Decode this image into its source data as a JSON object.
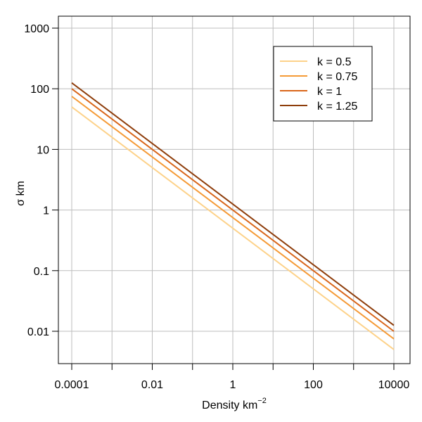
{
  "chart_data": {
    "type": "line",
    "title": "",
    "xlabel": "Density   km",
    "xlabel_exponent": "−2",
    "ylabel": "σ  km",
    "x_scale": "log",
    "y_scale": "log",
    "xlim": [
      0.0001,
      10000
    ],
    "ylim": [
      0.005,
      1200
    ],
    "grid": true,
    "legend_position": "top-right",
    "x_ticks": [
      0.0001,
      0.001,
      0.01,
      0.1,
      1,
      10,
      100,
      1000,
      10000
    ],
    "x_tick_labels": [
      "0.0001",
      "",
      "0.01",
      "",
      "1",
      "",
      "100",
      "",
      "10000"
    ],
    "y_ticks": [
      0.01,
      0.1,
      1,
      10,
      100,
      1000
    ],
    "y_tick_labels": [
      "0.01",
      "0.1",
      "1",
      "10",
      "100",
      "1000"
    ],
    "series": [
      {
        "name": "k =  0.5",
        "color": "#FDD28A",
        "x": [
          0.0001,
          10000
        ],
        "y": [
          50,
          0.005
        ]
      },
      {
        "name": "k =  0.75",
        "color": "#F59A36",
        "x": [
          0.0001,
          10000
        ],
        "y": [
          75,
          0.0075
        ]
      },
      {
        "name": "k =  1",
        "color": "#D9661A",
        "x": [
          0.0001,
          10000
        ],
        "y": [
          100,
          0.01
        ]
      },
      {
        "name": "k =  1.25",
        "color": "#8E3D0B",
        "x": [
          0.0001,
          10000
        ],
        "y": [
          125,
          0.0125
        ]
      }
    ]
  }
}
